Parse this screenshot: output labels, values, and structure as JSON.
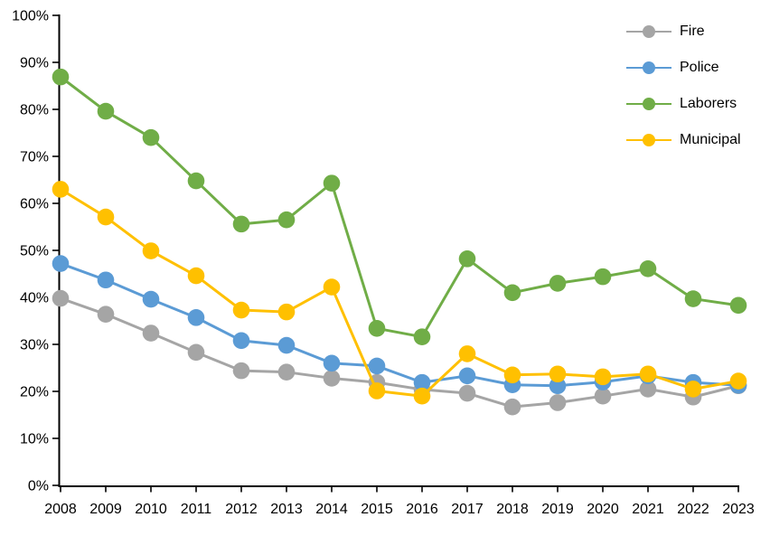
{
  "chart_data": {
    "type": "line",
    "title": "",
    "xlabel": "",
    "ylabel": "",
    "categories": [
      "2008",
      "2009",
      "2010",
      "2011",
      "2012",
      "2013",
      "2014",
      "2015",
      "2016",
      "2017",
      "2018",
      "2019",
      "2020",
      "2021",
      "2022",
      "2023"
    ],
    "series": [
      {
        "name": "Fire",
        "color": "#A5A5A5",
        "values": [
          39.8,
          36.4,
          32.4,
          28.3,
          24.4,
          24.1,
          22.8,
          21.9,
          20.4,
          19.6,
          16.7,
          17.6,
          19.0,
          20.5,
          18.8,
          21.2
        ]
      },
      {
        "name": "Police",
        "color": "#5B9BD5",
        "values": [
          47.2,
          43.7,
          39.6,
          35.7,
          30.8,
          29.8,
          26.0,
          25.4,
          21.9,
          23.3,
          21.4,
          21.2,
          22.0,
          23.3,
          21.9,
          21.3
        ]
      },
      {
        "name": "Laborers",
        "color": "#70AD47",
        "values": [
          86.9,
          79.6,
          74.0,
          64.8,
          55.6,
          56.5,
          64.3,
          33.4,
          31.6,
          48.2,
          41.0,
          43.0,
          44.4,
          46.1,
          39.7,
          38.3
        ]
      },
      {
        "name": "Municipal",
        "color": "#FFC000",
        "values": [
          63.0,
          57.1,
          49.9,
          44.6,
          37.3,
          36.9,
          42.2,
          20.1,
          19.0,
          28.0,
          23.5,
          23.7,
          23.1,
          23.7,
          20.5,
          22.2
        ]
      }
    ],
    "ylim": [
      0,
      100
    ],
    "y_tick_labels": [
      "0%",
      "10%",
      "20%",
      "30%",
      "40%",
      "50%",
      "60%",
      "70%",
      "80%",
      "90%",
      "100%"
    ],
    "grid": false,
    "legend_position": "top-right",
    "axis_color": "#000000",
    "background_color": "#FFFFFF"
  }
}
